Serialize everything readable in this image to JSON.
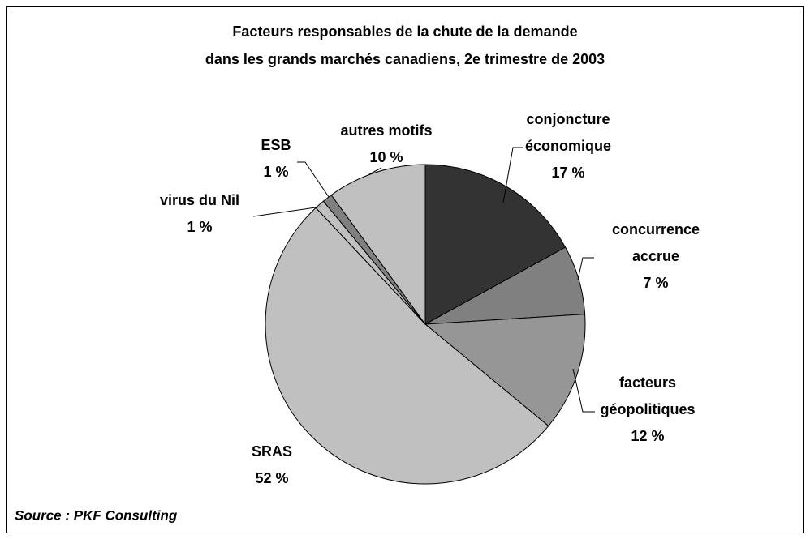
{
  "chart_data": {
    "type": "pie",
    "title": [
      "Facteurs responsables de la chute de la demande",
      "dans les grands marchés canadiens, 2e trimestre de 2003"
    ],
    "categories": [
      "conjoncture économique",
      "concurrence accrue",
      "facteurs géopolitiques",
      "SRAS",
      "virus du Nil",
      "ESB",
      "autres motifs"
    ],
    "values": [
      17,
      7,
      12,
      52,
      1,
      1,
      10
    ],
    "value_labels": [
      "17 %",
      "7 %",
      "12 %",
      "52 %",
      "1 %",
      "1 %",
      "10 %"
    ],
    "colors": [
      "#333333",
      "#808080",
      "#969696",
      "#c0c0c0",
      "#c0c0c0",
      "#808080",
      "#c0c0c0"
    ],
    "source": "Source : PKF Consulting"
  }
}
